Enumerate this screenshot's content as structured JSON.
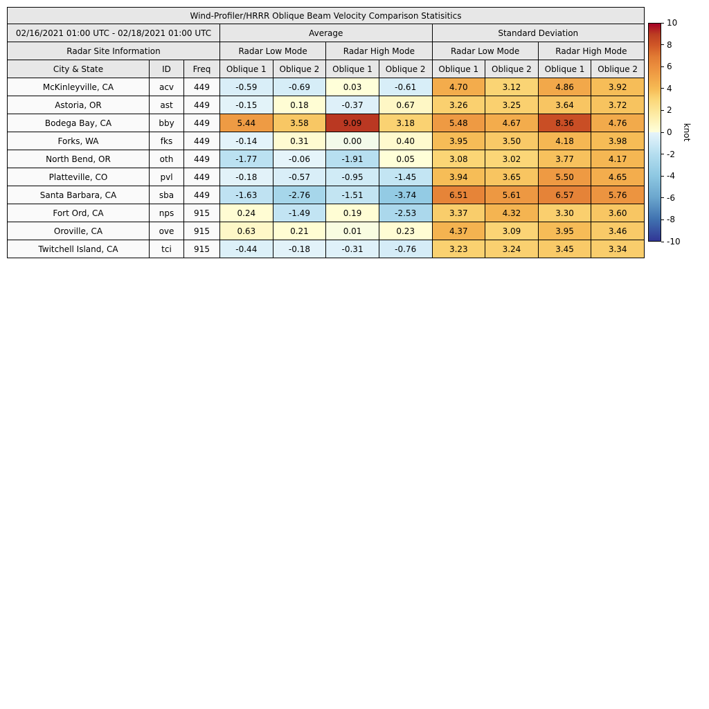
{
  "figure": {
    "title": "Wind-Profiler/HRRR Oblique Beam Velocity Comparison Statisitics",
    "period": "02/16/2021 01:00 UTC - 02/18/2021 01:00 UTC"
  },
  "headers": {
    "average": "Average",
    "standard_deviation": "Standard Deviation",
    "site_info": "Radar Site Information",
    "low_mode": "Radar Low Mode",
    "high_mode": "Radar High Mode",
    "city": "City & State",
    "id": "ID",
    "freq": "Freq",
    "oblique1": "Oblique 1",
    "oblique2": "Oblique 2"
  },
  "colorbar": {
    "label": "knot",
    "min": -10,
    "max": 10,
    "ticks": [
      10,
      8,
      6,
      4,
      2,
      0,
      -2,
      -4,
      -6,
      -8,
      -10
    ]
  },
  "colors": {
    "header_bg": "#e7e7e7",
    "site_cell_bg": "#fafafa",
    "border": "#000000",
    "colormap_stops": [
      {
        "v": -10,
        "c": "#313695"
      },
      {
        "v": -8,
        "c": "#4072b0"
      },
      {
        "v": -6,
        "c": "#6ba6cd"
      },
      {
        "v": -4,
        "c": "#8ec8e2"
      },
      {
        "v": -2,
        "c": "#b5deef"
      },
      {
        "v": -1,
        "c": "#cfeaf6"
      },
      {
        "v": -0.02,
        "c": "#e6f4fa"
      },
      {
        "v": 0.02,
        "c": "#ffffd9"
      },
      {
        "v": 0.5,
        "c": "#fef9cb"
      },
      {
        "v": 1.5,
        "c": "#fdeda9"
      },
      {
        "v": 3,
        "c": "#fbd778"
      },
      {
        "v": 4,
        "c": "#f6bb55"
      },
      {
        "v": 5,
        "c": "#f1a548"
      },
      {
        "v": 6,
        "c": "#eb8f3e"
      },
      {
        "v": 7,
        "c": "#e17a33"
      },
      {
        "v": 8,
        "c": "#d05727"
      },
      {
        "v": 9,
        "c": "#bc3d22"
      },
      {
        "v": 10,
        "c": "#a50026"
      }
    ]
  },
  "chart_data": {
    "type": "heatmap",
    "title": "Wind-Profiler/HRRR Oblique Beam Velocity Comparison Statisitics",
    "unit": "knot",
    "colorscale_range": [
      -10,
      10
    ],
    "value_columns": [
      "Average / Radar Low Mode / Oblique 1",
      "Average / Radar Low Mode / Oblique 2",
      "Average / Radar High Mode / Oblique 1",
      "Average / Radar High Mode / Oblique 2",
      "Standard Deviation / Radar Low Mode / Oblique 1",
      "Standard Deviation / Radar Low Mode / Oblique 2",
      "Standard Deviation / Radar High Mode / Oblique 1",
      "Standard Deviation / Radar High Mode / Oblique 2"
    ],
    "rows": [
      {
        "city": "McKinleyville, CA",
        "id": "acv",
        "freq": "449",
        "values": [
          -0.59,
          -0.69,
          0.03,
          -0.61,
          4.7,
          3.12,
          4.86,
          3.92
        ]
      },
      {
        "city": "Astoria, OR",
        "id": "ast",
        "freq": "449",
        "values": [
          -0.15,
          0.18,
          -0.37,
          0.67,
          3.26,
          3.25,
          3.64,
          3.72
        ]
      },
      {
        "city": "Bodega Bay, CA",
        "id": "bby",
        "freq": "449",
        "values": [
          5.44,
          3.58,
          9.09,
          3.18,
          5.48,
          4.67,
          8.36,
          4.76
        ]
      },
      {
        "city": "Forks, WA",
        "id": "fks",
        "freq": "449",
        "values": [
          -0.14,
          0.31,
          0.0,
          0.4,
          3.95,
          3.5,
          4.18,
          3.98
        ]
      },
      {
        "city": "North Bend, OR",
        "id": "oth",
        "freq": "449",
        "values": [
          -1.77,
          -0.06,
          -1.91,
          0.05,
          3.08,
          3.02,
          3.77,
          4.17
        ]
      },
      {
        "city": "Platteville, CO",
        "id": "pvl",
        "freq": "449",
        "values": [
          -0.18,
          -0.57,
          -0.95,
          -1.45,
          3.94,
          3.65,
          5.5,
          4.65
        ]
      },
      {
        "city": "Santa Barbara, CA",
        "id": "sba",
        "freq": "449",
        "values": [
          -1.63,
          -2.76,
          -1.51,
          -3.74,
          6.51,
          5.61,
          6.57,
          5.76
        ]
      },
      {
        "city": "Fort Ord, CA",
        "id": "nps",
        "freq": "915",
        "values": [
          0.24,
          -1.49,
          0.19,
          -2.53,
          3.37,
          4.32,
          3.3,
          3.6
        ]
      },
      {
        "city": "Oroville, CA",
        "id": "ove",
        "freq": "915",
        "values": [
          0.63,
          0.21,
          0.01,
          0.23,
          4.37,
          3.09,
          3.95,
          3.46
        ]
      },
      {
        "city": "Twitchell Island, CA",
        "id": "tci",
        "freq": "915",
        "values": [
          -0.44,
          -0.18,
          -0.31,
          -0.76,
          3.23,
          3.24,
          3.45,
          3.34
        ]
      }
    ]
  }
}
